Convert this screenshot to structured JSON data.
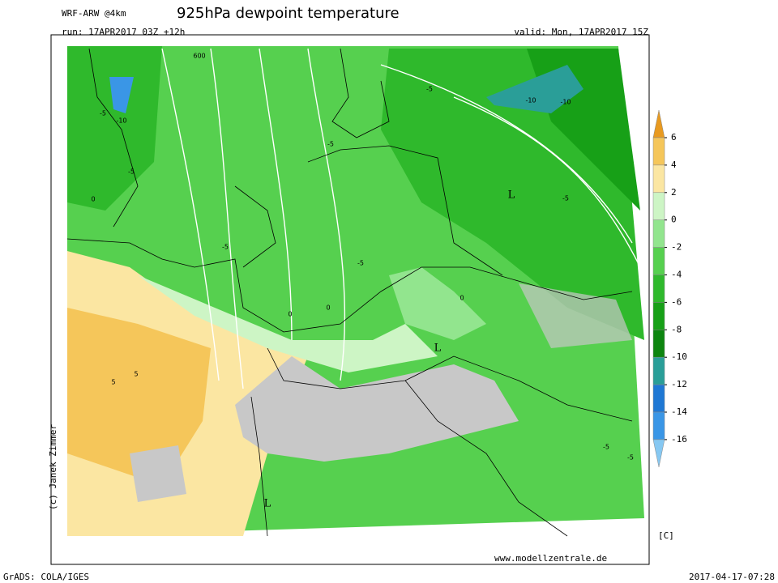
{
  "header": {
    "model": "WRF-ARW @4km",
    "title": "925hPa dewpoint temperature",
    "run": "run: 17APR2017 03Z +12h",
    "valid": "valid: Mon, 17APR2017 15Z"
  },
  "map": {
    "labels": [
      "600",
      "-5",
      "-10",
      "-5",
      "0",
      "-5",
      "-5",
      "-10",
      "-10",
      "-5",
      "L",
      "-5",
      "L",
      "0",
      "-5",
      "0",
      "0",
      "5",
      "5",
      "L",
      "-5",
      "-5"
    ]
  },
  "colorbar": {
    "levels": [
      6,
      4,
      2,
      0,
      -2,
      -4,
      -6,
      -8,
      -10,
      -12,
      -14,
      -16
    ],
    "colors": [
      "#e89a20",
      "#f5c65a",
      "#fbe6a2",
      "#cdf5c5",
      "#92e58e",
      "#56d04f",
      "#2fb92c",
      "#17a017",
      "#0d850f",
      "#2a9e98",
      "#1f78d4",
      "#3a96e6",
      "#86c8f2"
    ],
    "unit": "[C]"
  },
  "footer": {
    "copyright": "(c) Janek Zimmer",
    "site": "www.modellzentrale.de",
    "software": "GrADS: COLA/IGES",
    "timestamp": "2017-04-17-07:28"
  }
}
